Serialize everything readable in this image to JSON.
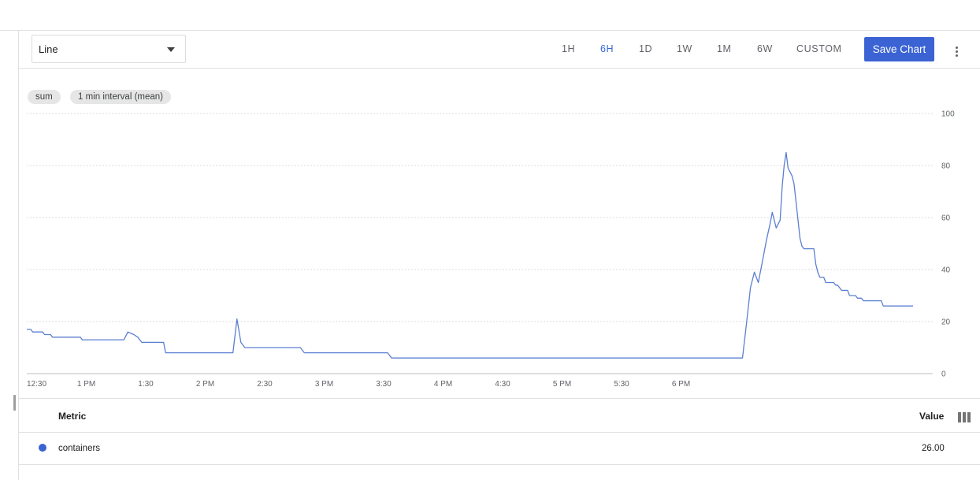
{
  "toolbar": {
    "chart_type": "Line",
    "ranges": [
      "1H",
      "6H",
      "1D",
      "1W",
      "1M",
      "6W",
      "CUSTOM"
    ],
    "active_range": "6H",
    "save_label": "Save Chart"
  },
  "chips": [
    "sum",
    "1 min interval (mean)"
  ],
  "chart_data": {
    "type": "line",
    "ylim": [
      0,
      100
    ],
    "y_ticks": [
      0,
      20,
      40,
      60,
      80,
      100
    ],
    "x_tick_labels": [
      "12:30",
      "1 PM",
      "1:30",
      "2 PM",
      "2:30",
      "3 PM",
      "3:30",
      "4 PM",
      "4:30",
      "5 PM",
      "5:30",
      "6 PM"
    ],
    "x_unit": "minutes after 12:30",
    "grid": true,
    "series": [
      {
        "name": "containers",
        "color": "#5b7fd1",
        "points": [
          [
            0,
            17
          ],
          [
            2,
            17
          ],
          [
            3,
            16
          ],
          [
            8,
            16
          ],
          [
            9,
            15
          ],
          [
            12,
            15
          ],
          [
            13,
            14
          ],
          [
            27,
            14
          ],
          [
            28,
            13
          ],
          [
            49,
            13
          ],
          [
            51,
            16
          ],
          [
            54,
            15
          ],
          [
            56,
            14
          ],
          [
            58,
            12
          ],
          [
            69,
            12
          ],
          [
            70,
            8
          ],
          [
            104,
            8
          ],
          [
            106,
            21
          ],
          [
            108,
            12
          ],
          [
            110,
            10
          ],
          [
            138,
            10
          ],
          [
            140,
            8
          ],
          [
            182,
            8
          ],
          [
            184,
            6
          ],
          [
            361,
            6
          ],
          [
            363,
            19
          ],
          [
            365,
            33
          ],
          [
            367,
            39
          ],
          [
            369,
            35
          ],
          [
            371,
            43
          ],
          [
            373,
            51
          ],
          [
            375,
            58
          ],
          [
            376,
            62
          ],
          [
            378,
            56
          ],
          [
            380,
            59
          ],
          [
            381,
            72
          ],
          [
            382,
            80
          ],
          [
            383,
            85
          ],
          [
            384,
            79
          ],
          [
            386,
            76
          ],
          [
            387,
            73
          ],
          [
            388,
            66
          ],
          [
            389,
            59
          ],
          [
            390,
            52
          ],
          [
            391,
            49
          ],
          [
            392,
            48
          ],
          [
            397,
            48
          ],
          [
            398,
            42
          ],
          [
            399,
            39
          ],
          [
            400,
            37
          ],
          [
            402,
            37
          ],
          [
            403,
            35
          ],
          [
            407,
            35
          ],
          [
            408,
            34
          ],
          [
            409,
            34
          ],
          [
            410,
            33
          ],
          [
            411,
            32
          ],
          [
            414,
            32
          ],
          [
            415,
            30
          ],
          [
            418,
            30
          ],
          [
            419,
            29
          ],
          [
            421,
            29
          ],
          [
            422,
            28
          ],
          [
            431,
            28
          ],
          [
            432,
            26
          ],
          [
            447,
            26
          ]
        ]
      }
    ]
  },
  "legend": {
    "metric_header": "Metric",
    "value_header": "Value",
    "rows": [
      {
        "name": "containers",
        "value": "26.00",
        "color": "#3b63d3"
      }
    ]
  }
}
